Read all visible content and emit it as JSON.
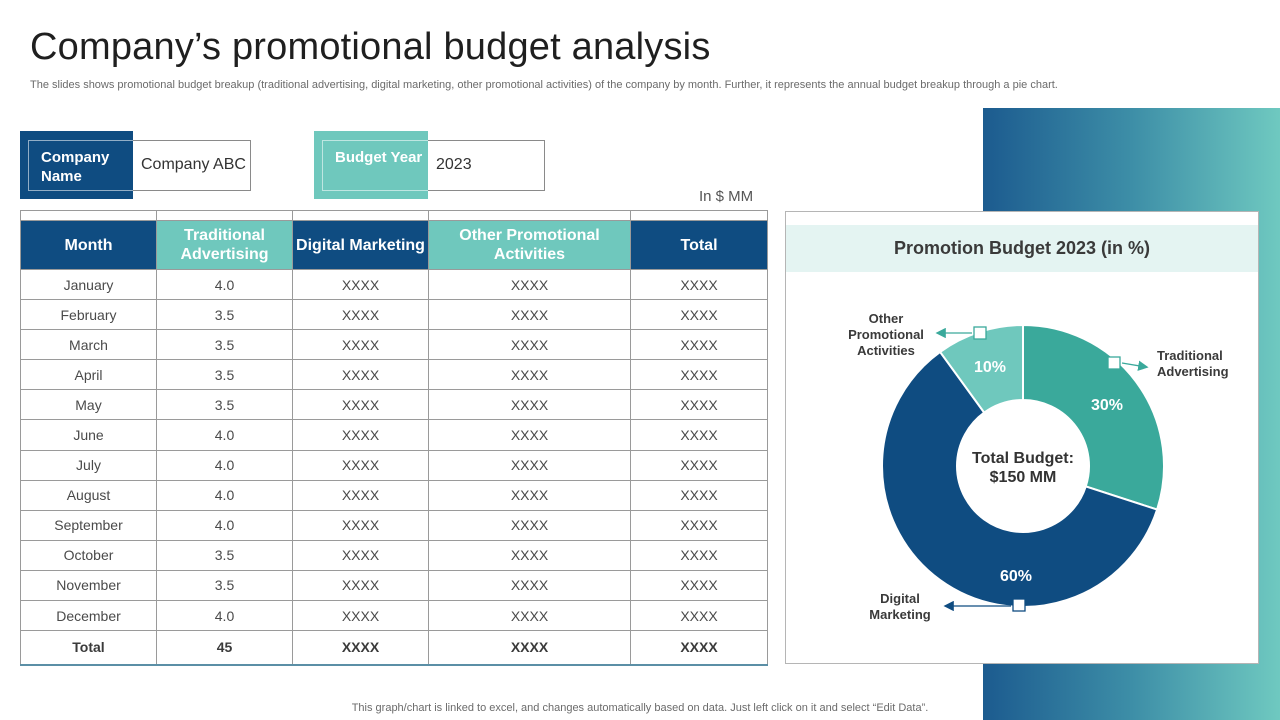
{
  "page": {
    "title": "Company’s promotional budget analysis",
    "subtitle": "The slides shows promotional budget breakup (traditional advertising, digital marketing, other promotional activities) of the company by month. Further, it represents the annual budget breakup through a pie chart.",
    "footer": "This graph/chart is linked to excel, and changes automatically based on data. Just left click on it and select “Edit Data”."
  },
  "info": {
    "company_label": "Company Name",
    "company_value": "Company ABC",
    "year_label": "Budget Year",
    "year_value": "2023",
    "unit_note": "In $ MM"
  },
  "colors": {
    "dark_blue": "#0f4c81",
    "teal": "#6fc8bd",
    "slice_traditional": "#3aa99b",
    "slice_digital": "#0f4c81",
    "slice_other": "#6fc8bd"
  },
  "table": {
    "headers": [
      "Month",
      "Traditional Advertising",
      "Digital Marketing",
      "Other Promotional Activities",
      "Total"
    ],
    "rows": [
      [
        "January",
        "4.0",
        "XXXX",
        "XXXX",
        "XXXX"
      ],
      [
        "February",
        "3.5",
        "XXXX",
        "XXXX",
        "XXXX"
      ],
      [
        "March",
        "3.5",
        "XXXX",
        "XXXX",
        "XXXX"
      ],
      [
        "April",
        "3.5",
        "XXXX",
        "XXXX",
        "XXXX"
      ],
      [
        "May",
        "3.5",
        "XXXX",
        "XXXX",
        "XXXX"
      ],
      [
        "June",
        "4.0",
        "XXXX",
        "XXXX",
        "XXXX"
      ],
      [
        "July",
        "4.0",
        "XXXX",
        "XXXX",
        "XXXX"
      ],
      [
        "August",
        "4.0",
        "XXXX",
        "XXXX",
        "XXXX"
      ],
      [
        "September",
        "4.0",
        "XXXX",
        "XXXX",
        "XXXX"
      ],
      [
        "October",
        "3.5",
        "XXXX",
        "XXXX",
        "XXXX"
      ],
      [
        "November",
        "3.5",
        "XXXX",
        "XXXX",
        "XXXX"
      ],
      [
        "December",
        "4.0",
        "XXXX",
        "XXXX",
        "XXXX"
      ]
    ],
    "total_row": [
      "Total",
      "45",
      "XXXX",
      "XXXX",
      "XXXX"
    ]
  },
  "chart_data": {
    "type": "pie",
    "title": "Promotion Budget 2023 (in %)",
    "center_label": [
      "Total Budget:",
      "$150 MM"
    ],
    "categories": [
      "Traditional Advertising",
      "Digital Marketing",
      "Other Promotional Activities"
    ],
    "values": [
      30,
      60,
      10
    ],
    "value_labels": [
      "30%",
      "60%",
      "10%"
    ],
    "callout_labels": [
      [
        "Traditional",
        "Advertising"
      ],
      [
        "Digital",
        "Marketing"
      ],
      [
        "Other",
        "Promotional",
        "Activities"
      ]
    ]
  }
}
